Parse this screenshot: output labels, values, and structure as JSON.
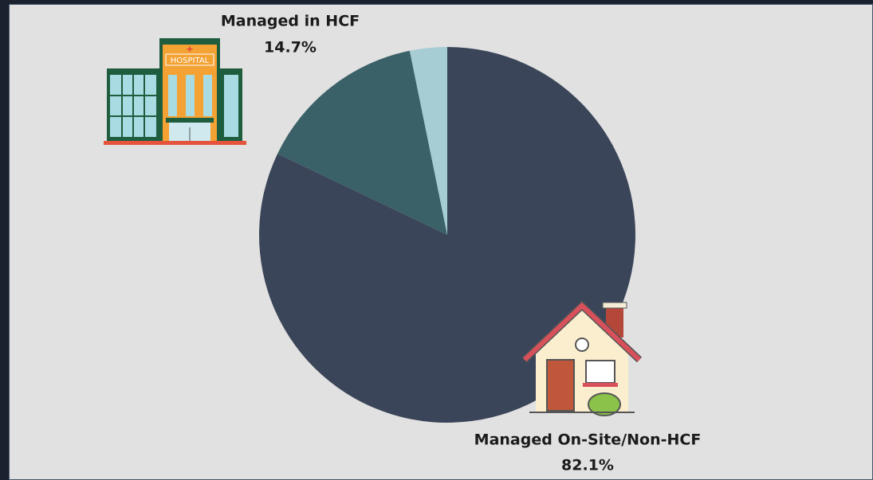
{
  "chart_data": {
    "type": "pie",
    "categories": [
      "Managed On-Site/Non-HCF",
      "Managed in HCF",
      null
    ],
    "values": [
      82.1,
      14.7,
      3.2
    ],
    "value_labels": [
      "82.1%",
      "14.7%",
      null
    ],
    "colors": [
      "#3b4559",
      "#3a6068",
      "#a6ccd4"
    ]
  },
  "icons": {
    "hospital_sign": "HOSPITAL"
  }
}
